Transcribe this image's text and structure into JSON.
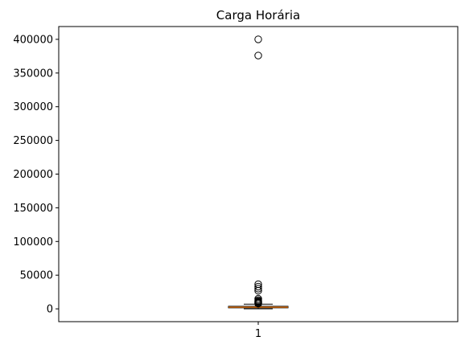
{
  "chart_data": {
    "type": "box",
    "title": "Carga Horária",
    "xlabel": "",
    "ylabel": "",
    "categories": [
      "1"
    ],
    "ylim": [
      -19000,
      419000
    ],
    "y_ticks": [
      0,
      50000,
      100000,
      150000,
      200000,
      250000,
      300000,
      350000,
      400000
    ],
    "grid": false,
    "legend": "none",
    "box": {
      "q1": 1500,
      "median": 2500,
      "q3": 3800,
      "whisker_low": 100,
      "whisker_high": 7000,
      "outliers": [
        400000,
        376000,
        36500,
        33000,
        30000,
        27000,
        15000,
        13000,
        11500,
        10500,
        9500,
        8500,
        7800
      ]
    },
    "colors": {
      "median": "#ff7f0e",
      "box": "#000000",
      "axes": "#000000"
    }
  }
}
